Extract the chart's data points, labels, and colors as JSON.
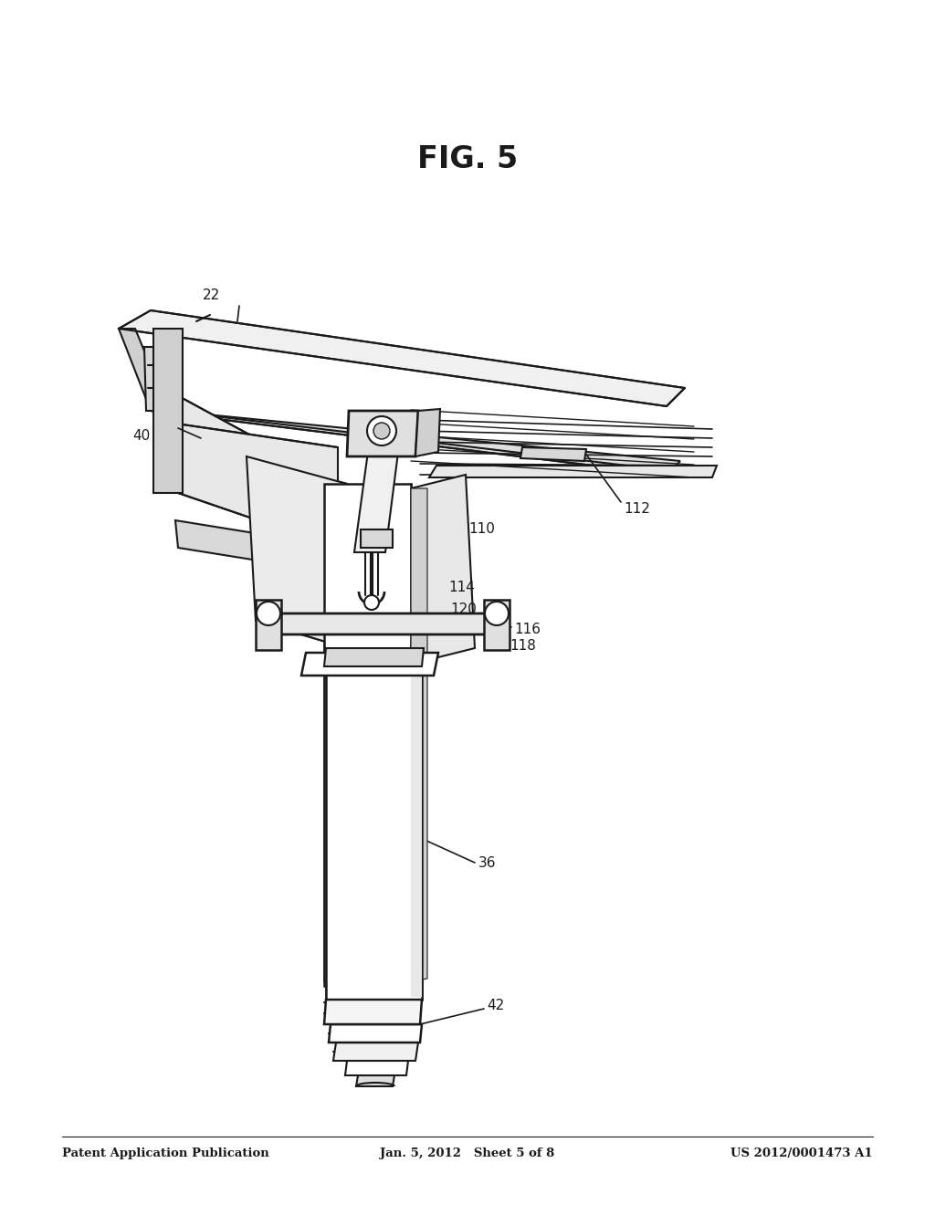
{
  "bg_color": "#ffffff",
  "line_color": "#1a1a1a",
  "header_left": "Patent Application Publication",
  "header_center": "Jan. 5, 2012   Sheet 5 of 8",
  "header_right": "US 2012/0001473 A1",
  "fig_label": "FIG. 5",
  "gray_light": "#e8e8e8",
  "gray_mid": "#c8c8c8",
  "gray_dark": "#a0a0a0",
  "white": "#ffffff"
}
